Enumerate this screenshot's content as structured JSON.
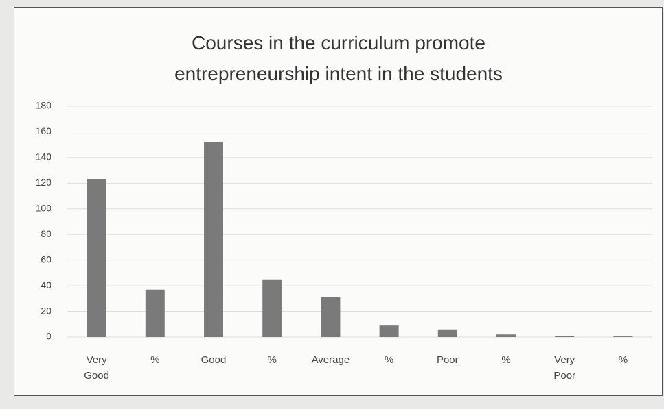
{
  "chart_data": {
    "type": "bar",
    "title": "Courses in the curriculum promote entrepreneurship intent in the students",
    "categories": [
      "Very Good",
      "%",
      "Good",
      "%",
      "Average",
      "%",
      "Poor",
      "%",
      "Very Poor",
      "%"
    ],
    "values": [
      123,
      37,
      152,
      45,
      31,
      9,
      6,
      2,
      1,
      0.5
    ],
    "color": "#7a7a7a",
    "ylim": [
      0,
      180
    ],
    "yticks": [
      0,
      20,
      40,
      60,
      80,
      100,
      120,
      140,
      160,
      180
    ],
    "grid": true
  }
}
